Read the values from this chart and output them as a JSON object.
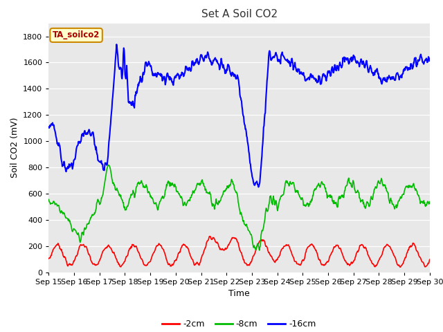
{
  "title": "Set A Soil CO2",
  "xlabel": "Time",
  "ylabel": "Soil CO2 (mV)",
  "annotation": "TA_soilco2",
  "ylim": [
    0,
    1900
  ],
  "x_tick_labels": [
    "Sep 15",
    "Sep 16",
    "Sep 17",
    "Sep 18",
    "Sep 19",
    "Sep 20",
    "Sep 21",
    "Sep 22",
    "Sep 23",
    "Sep 24",
    "Sep 25",
    "Sep 26",
    "Sep 27",
    "Sep 28",
    "Sep 29",
    "Sep 30"
  ],
  "legend_labels": [
    "-2cm",
    "-8cm",
    "-16cm"
  ],
  "legend_colors": [
    "#ff0000",
    "#00bb00",
    "#0000ff"
  ],
  "line_color_2cm": "#ff0000",
  "line_color_8cm": "#00bb00",
  "line_color_16cm": "#0000ff",
  "bg_color": "#e8e8e8",
  "annotation_bg": "#ffffcc",
  "annotation_fg": "#aa0000",
  "annotation_border": "#cc8800"
}
